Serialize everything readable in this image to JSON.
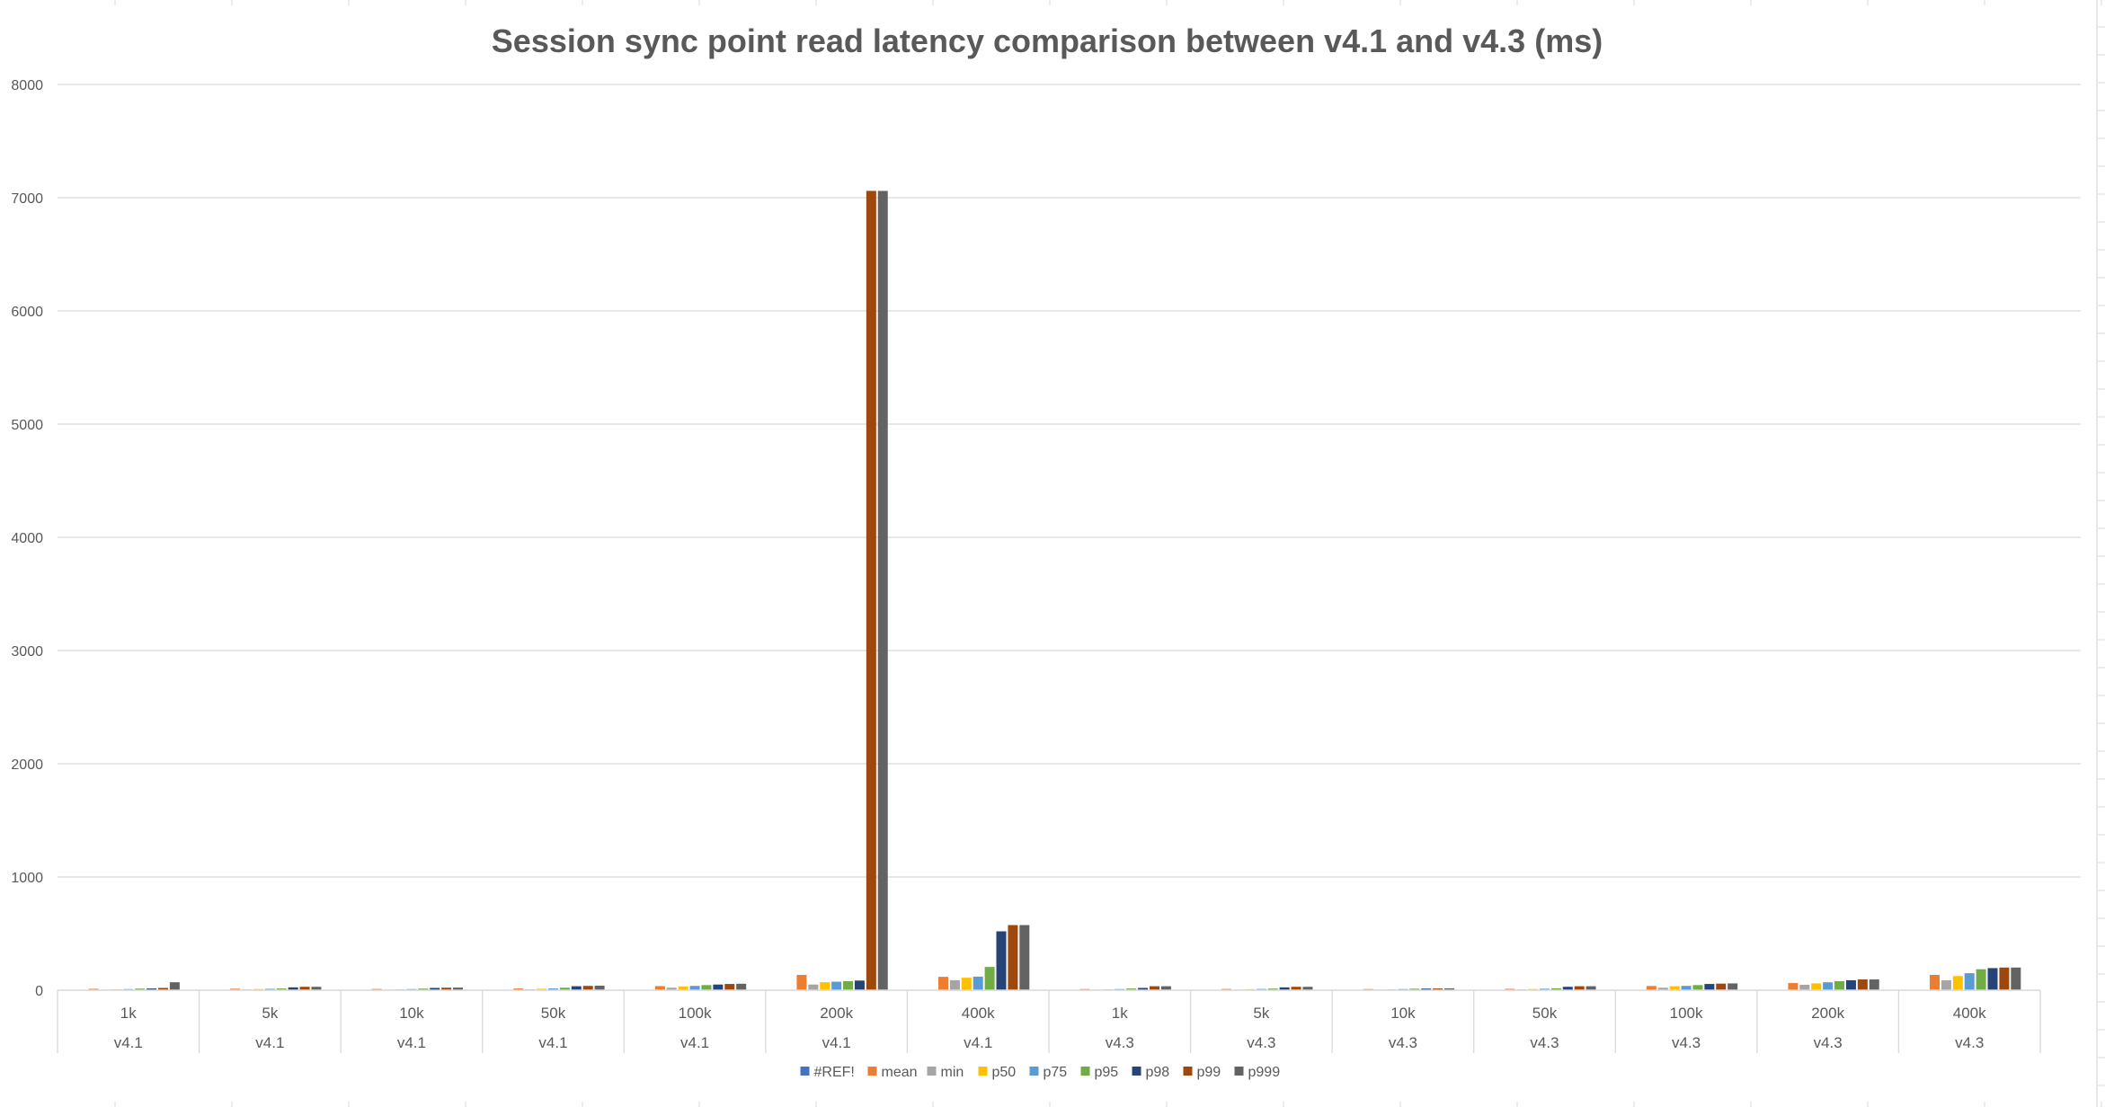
{
  "chart_data": {
    "type": "bar",
    "title": "Session sync point read latency comparison between v4.1 and v4.3 (ms)",
    "xlabel": "",
    "ylabel": "",
    "ylim": [
      0,
      8000
    ],
    "yticks": [
      0,
      1000,
      2000,
      3000,
      4000,
      5000,
      6000,
      7000,
      8000
    ],
    "grid": true,
    "legend_position": "bottom",
    "categories": [
      "1k",
      "5k",
      "10k",
      "50k",
      "100k",
      "200k",
      "400k",
      "1k",
      "5k",
      "10k",
      "50k",
      "100k",
      "200k",
      "400k"
    ],
    "groups": [
      "v4.1",
      "v4.1",
      "v4.1",
      "v4.1",
      "v4.1",
      "v4.1",
      "v4.1",
      "v4.3",
      "v4.3",
      "v4.3",
      "v4.3",
      "v4.3",
      "v4.3",
      "v4.3"
    ],
    "series": [
      {
        "name": "#REF!",
        "color": "#4472C4",
        "values": [
          0,
          0,
          0,
          0,
          0,
          0,
          0,
          0,
          0,
          0,
          0,
          0,
          0,
          0
        ]
      },
      {
        "name": "mean",
        "color": "#ED7D31",
        "values": [
          12,
          13,
          11,
          15,
          36,
          135,
          118,
          10,
          11,
          10,
          12,
          37,
          63,
          135
        ]
      },
      {
        "name": "min",
        "color": "#A5A5A5",
        "values": [
          5,
          6,
          5,
          8,
          22,
          50,
          88,
          5,
          5,
          5,
          7,
          22,
          48,
          88
        ]
      },
      {
        "name": "p50",
        "color": "#FFC000",
        "values": [
          8,
          10,
          8,
          12,
          33,
          70,
          110,
          8,
          9,
          8,
          10,
          35,
          60,
          125
        ]
      },
      {
        "name": "p75",
        "color": "#5B9BD5",
        "values": [
          10,
          12,
          10,
          15,
          38,
          75,
          120,
          10,
          11,
          10,
          13,
          38,
          70,
          150
        ]
      },
      {
        "name": "p95",
        "color": "#70AD47",
        "values": [
          14,
          15,
          14,
          22,
          45,
          80,
          205,
          15,
          14,
          13,
          17,
          45,
          80,
          185
        ]
      },
      {
        "name": "p98",
        "color": "#264478",
        "values": [
          15,
          25,
          20,
          35,
          50,
          85,
          520,
          20,
          25,
          14,
          30,
          55,
          88,
          195
        ]
      },
      {
        "name": "p99",
        "color": "#9E480E",
        "values": [
          20,
          30,
          22,
          38,
          55,
          7060,
          575,
          35,
          30,
          15,
          35,
          58,
          95,
          200
        ]
      },
      {
        "name": "p999",
        "color": "#636363",
        "values": [
          70,
          30,
          23,
          40,
          57,
          7060,
          575,
          35,
          30,
          16,
          35,
          60,
          95,
          200
        ]
      }
    ]
  }
}
